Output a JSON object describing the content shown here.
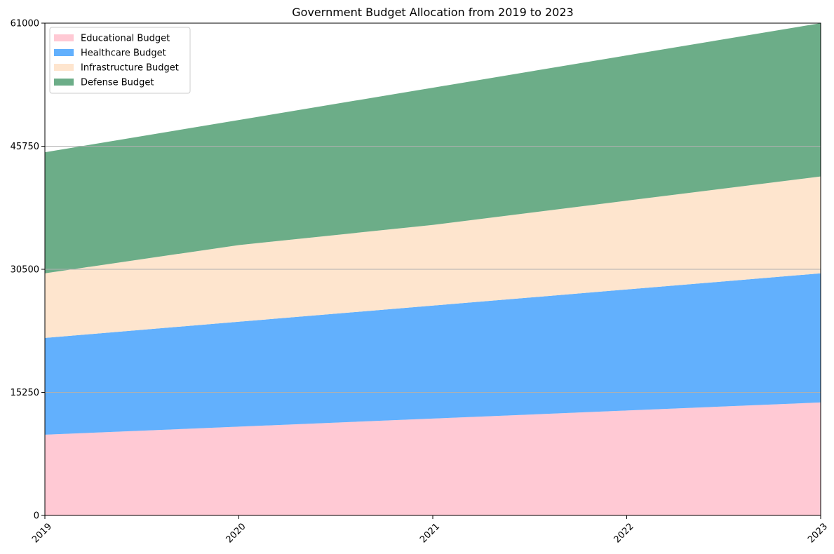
{
  "chart_data": {
    "type": "area",
    "stacked": true,
    "title": "Government Budget Allocation from 2019 to 2023",
    "xlabel": "",
    "ylabel": "",
    "x": [
      "2019",
      "2020",
      "2021",
      "2022",
      "2023"
    ],
    "ylim": [
      0,
      61000
    ],
    "yticks": [
      "0",
      "15250",
      "30500",
      "45750",
      "61000"
    ],
    "grid": "horizontal",
    "legend_position": "top-left",
    "series": [
      {
        "name": "Educational Budget",
        "values": [
          10000,
          11000,
          12000,
          13000,
          14000
        ],
        "color": "#ffc9d4"
      },
      {
        "name": "Healthcare Budget",
        "values": [
          12000,
          13000,
          14000,
          15000,
          16000
        ],
        "color": "#62b0fd"
      },
      {
        "name": "Infrastructure Budget",
        "values": [
          8000,
          9500,
          10000,
          11000,
          12000
        ],
        "color": "#fee5ce"
      },
      {
        "name": "Defense Budget",
        "values": [
          15000,
          15500,
          17000,
          18000,
          19000
        ],
        "color": "#6cad88"
      }
    ]
  }
}
